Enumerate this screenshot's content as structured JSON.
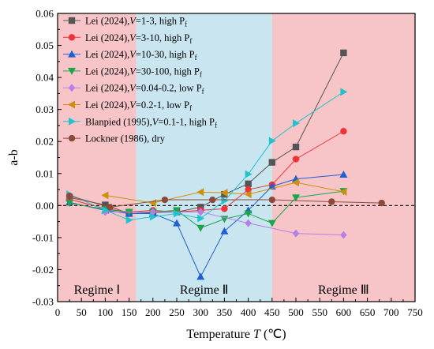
{
  "chart_data": {
    "type": "line",
    "xlabel_main": "Temperature ",
    "xlabel_var": "T",
    "xlabel_unit": " (℃)",
    "ylabel": "a-b",
    "xlim": [
      0,
      750
    ],
    "ylim": [
      -0.03,
      0.06
    ],
    "xticks": [
      "0",
      "50",
      "100",
      "150",
      "200",
      "250",
      "300",
      "350",
      "400",
      "450",
      "500",
      "550",
      "600",
      "650",
      "700",
      "750"
    ],
    "yticks": [
      "-0.03",
      "-0.02",
      "-0.01",
      "0.00",
      "0.01",
      "0.02",
      "0.03",
      "0.04",
      "0.05",
      "0.06"
    ],
    "zero_line": "dashed",
    "legend_position": "top-left",
    "regimes": [
      {
        "label": "Regime Ⅰ",
        "x0": 0,
        "x1": 165,
        "color": "#f7c5c8"
      },
      {
        "label": "Regime Ⅱ",
        "x0": 165,
        "x1": 450,
        "color": "#c9e6f0"
      },
      {
        "label": "Regime Ⅲ",
        "x0": 450,
        "x1": 750,
        "color": "#f7c5c8"
      }
    ],
    "series": [
      {
        "name_pre": "Lei (2024),",
        "name_var": "V",
        "name_range": "=1-3, high P",
        "name_sub": "f",
        "marker": "square",
        "color": "#555555",
        "x": [
          25,
          100,
          150,
          200,
          250,
          300,
          350,
          400,
          450,
          500,
          600
        ],
        "y": [
          0.0025,
          0.0002,
          -0.0025,
          -0.0022,
          -0.002,
          -0.0005,
          0.0035,
          0.0068,
          0.0135,
          0.0183,
          0.0477
        ]
      },
      {
        "name_pre": "Lei (2024),",
        "name_var": "V",
        "name_range": "=3-10, high P",
        "name_sub": "f",
        "marker": "circle",
        "color": "#ee3338",
        "x": [
          25,
          100,
          150,
          200,
          250,
          300,
          350,
          400,
          450,
          500,
          600
        ],
        "y": [
          0.002,
          -0.001,
          -0.002,
          -0.0015,
          -0.002,
          -0.0015,
          -0.001,
          0.005,
          0.0065,
          0.0145,
          0.0232
        ]
      },
      {
        "name_pre": "Lei (2024),",
        "name_var": "V",
        "name_range": "=10-30, high P",
        "name_sub": "f",
        "marker": "triangle-up",
        "color": "#1f5fcf",
        "x": [
          25,
          100,
          150,
          200,
          250,
          300,
          350,
          400,
          450,
          500,
          600
        ],
        "y": [
          0.001,
          -0.0015,
          -0.0025,
          -0.0025,
          -0.0055,
          -0.0222,
          -0.008,
          -0.0015,
          0.006,
          0.0083,
          0.0097
        ]
      },
      {
        "name_pre": "Lei (2024),",
        "name_var": "V",
        "name_range": "=30-100, high P",
        "name_sub": "f",
        "marker": "triangle-down",
        "color": "#1aa64a",
        "x": [
          25,
          100,
          150,
          200,
          250,
          300,
          350,
          400,
          450,
          500,
          600
        ],
        "y": [
          0.0008,
          -0.0012,
          -0.002,
          -0.002,
          -0.0015,
          -0.007,
          -0.0042,
          -0.0025,
          -0.0055,
          0.0025,
          0.0045
        ]
      },
      {
        "name_pre": "Lei (2024),",
        "name_var": "V",
        "name_range": "=0.04-0.2, low P",
        "name_sub": "f",
        "marker": "diamond",
        "color": "#b77ee8",
        "x": [
          100,
          200,
          300,
          400,
          500,
          600
        ],
        "y": [
          -0.002,
          -0.002,
          -0.002,
          -0.0055,
          -0.0087,
          -0.0092
        ]
      },
      {
        "name_pre": "Lei (2024),",
        "name_var": "V",
        "name_range": "=0.2-1, low P",
        "name_sub": "f",
        "marker": "triangle-left",
        "color": "#cf8f0e",
        "x": [
          100,
          200,
          300,
          350,
          400,
          500,
          600
        ],
        "y": [
          0.0032,
          0.0008,
          0.0042,
          0.004,
          0.0035,
          0.0072,
          0.0043
        ]
      },
      {
        "name_pre": "Blanpied (1995),",
        "name_var": "V",
        "name_range": "=0.1-1, high P",
        "name_sub": "f",
        "marker": "triangle-right",
        "color": "#23c2cc",
        "x": [
          25,
          100,
          150,
          200,
          250,
          300,
          350,
          400,
          450,
          500,
          600
        ],
        "y": [
          0.0035,
          -0.0015,
          -0.0045,
          -0.0035,
          -0.0025,
          -0.004,
          0.0015,
          0.0098,
          0.0202,
          0.0257,
          0.0355
        ]
      },
      {
        "name_pre": "Lockner (1986), dry",
        "name_var": "",
        "name_range": "",
        "name_sub": "",
        "marker": "circle",
        "color": "#8c4a3c",
        "x": [
          25,
          110,
          225,
          325,
          450,
          575,
          680
        ],
        "y": [
          0.003,
          -0.0005,
          0.0018,
          0.0018,
          0.0018,
          0.0012,
          0.0008
        ]
      }
    ]
  }
}
